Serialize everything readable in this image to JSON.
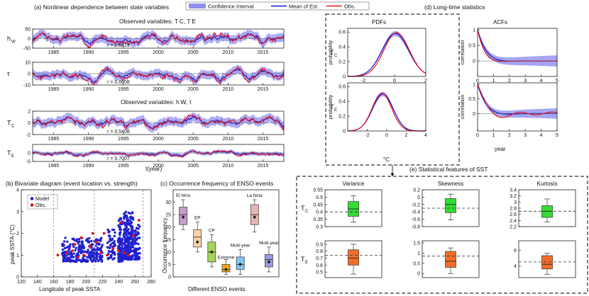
{
  "chart_data": {
    "type": "composite",
    "legend": {
      "items": [
        "Confidence Interval",
        "Mean of Est.",
        "Obs."
      ],
      "colors": {
        "ci": "#8f8ff0",
        "mean": "#1515c8",
        "obs": "#e8141e"
      }
    },
    "panel_a": {
      "title": "(a) Nonlinear dependence between state variables",
      "subtitle1": "Observed variables: T C, T E",
      "subtitle2": "Observed variables: h W, τ",
      "xlabel": "t(year)",
      "xticks": [
        "1985",
        "1990",
        "1995",
        "2000",
        "2005",
        "2010",
        "2015"
      ],
      "xlim": [
        1982,
        2018
      ],
      "rows": [
        {
          "label": "h",
          "sub": "W",
          "ylim": [
            -50,
            50
          ],
          "yticks": [
            "50",
            "0",
            "-50"
          ],
          "amp": 30,
          "seed": 3,
          "r": "r = 0.6819"
        },
        {
          "label": "τ",
          "sub": "",
          "ylim": [
            -10,
            10
          ],
          "yticks": [
            "10",
            "0",
            "-10"
          ],
          "amp": 5,
          "seed": 7,
          "r": "r = 0.6608"
        },
        {
          "label": "T",
          "sub": "C",
          "ylim": [
            -2,
            2
          ],
          "yticks": [
            "2",
            "0",
            "-2"
          ],
          "amp": 1,
          "seed": 11,
          "r": "r = 0.5408"
        },
        {
          "label": "T",
          "sub": "E",
          "ylim": [
            -5,
            5
          ],
          "yticks": [
            "0",
            "-5"
          ],
          "amp": 1.5,
          "seed": 17,
          "r": "r = 0.7007"
        }
      ]
    },
    "panel_b": {
      "title": "(b) Bivariate diagram (event location vs. strength)",
      "xlabel": "Longitude of peak SSTA",
      "ylabel": "peak SSTA (°C)",
      "xlim": [
        120,
        280
      ],
      "ylim": [
        0,
        4
      ],
      "xticks": [
        120,
        140,
        160,
        180,
        200,
        220,
        240,
        260,
        280
      ],
      "yticks": [
        0,
        1,
        2,
        3,
        4
      ],
      "vlines": [
        160,
        210,
        270
      ],
      "legend": [
        "Model",
        "Obs."
      ],
      "model_color": "#2020d0",
      "obs_color": "#e01010",
      "obs_points": [
        [
          165,
          1.0
        ],
        [
          176,
          1.1
        ],
        [
          183,
          1.2
        ],
        [
          190,
          0.9
        ],
        [
          197,
          1.0
        ],
        [
          205,
          1.4
        ],
        [
          212,
          1.6
        ],
        [
          222,
          2.0
        ],
        [
          233,
          1.3
        ],
        [
          240,
          1.2
        ],
        [
          243,
          2.5
        ],
        [
          247,
          1.1
        ],
        [
          258,
          1.9
        ],
        [
          265,
          2.6
        ],
        [
          252,
          1.0
        ],
        [
          218,
          1.1
        ],
        [
          186,
          1.5
        ],
        [
          194,
          1.8
        ],
        [
          208,
          2.0
        ],
        [
          226,
          1.0
        ]
      ]
    },
    "panel_c": {
      "title": "(c) Occurrence frequency of ENSO events",
      "xlabel": "Different ENSO events",
      "ylabel": "Occurrence frequency",
      "ylim": [
        0,
        35
      ],
      "yticks": [
        0,
        5,
        10,
        15,
        20,
        25,
        30
      ],
      "boxes": [
        {
          "name": "El Nino",
          "q1": 21,
          "q3": 28,
          "med": 25,
          "lo": 19,
          "hi": 31,
          "mean": 24,
          "color": "#c89bcd"
        },
        {
          "name": "EP",
          "q1": 12,
          "q3": 19,
          "med": 16,
          "lo": 10,
          "hi": 22,
          "mean": 14,
          "color": "#f6d3a8"
        },
        {
          "name": "CP",
          "q1": 6,
          "q3": 14,
          "med": 10,
          "lo": 4,
          "hi": 17,
          "mean": 10,
          "color": "#a7d25a"
        },
        {
          "name": "Extreme",
          "q1": 2,
          "q3": 5,
          "med": 3,
          "lo": 1,
          "hi": 7,
          "mean": 3,
          "color": "#f2a421"
        },
        {
          "name": "Multi-year",
          "q1": 3,
          "q3": 8,
          "med": 5,
          "lo": 1,
          "hi": 11,
          "mean": 5,
          "color": "#7cc8f0"
        },
        {
          "name": "La Nina",
          "q1": 21,
          "q3": 29,
          "med": 25,
          "lo": 18,
          "hi": 31,
          "mean": 24,
          "color": "#eab5b5"
        },
        {
          "name": "Multi-year",
          "q1": 4,
          "q3": 9,
          "med": 7,
          "lo": 2,
          "hi": 12,
          "mean": 6,
          "color": "#9b9bea"
        }
      ]
    },
    "panel_d": {
      "title": "(d) Long-time statistics",
      "pdf_title": "PDFs",
      "acf_title": "ACFs",
      "pdf_ylabel": "probability",
      "acf_ylabel": "correlation",
      "pdf_xlabel": "°C",
      "acf_xlabel": "year",
      "rows": [
        "C",
        "E"
      ],
      "pdf_xticks": [
        "-2",
        "0",
        "2"
      ],
      "pdf_xticks2": [
        "-2",
        "0",
        "2",
        "4"
      ],
      "pdf_yticks": [
        "0",
        "0.2",
        "0.4",
        "0.6"
      ],
      "acf_xticks": [
        "0",
        "1",
        "2",
        "3",
        "4",
        "5"
      ],
      "acf_yticks": [
        "0",
        "0.5",
        "1"
      ]
    },
    "panel_e": {
      "title": "(e) Statistical features of SST",
      "columns": [
        "Variance",
        "Skewness",
        "Kurtosis"
      ],
      "rows": [
        "C",
        "E"
      ],
      "boxes": [
        {
          "row": 0,
          "col": 0,
          "ylim": [
            0.3,
            0.55
          ],
          "yticks": [
            "0.55",
            "0.5",
            "0.45",
            "0.4",
            "0.35",
            "0.3"
          ],
          "q1": 0.37,
          "q3": 0.47,
          "med": 0.42,
          "lo": 0.33,
          "hi": 0.51,
          "obs": 0.4,
          "color": "#33dd33"
        },
        {
          "row": 0,
          "col": 1,
          "ylim": [
            -0.8,
            0.2
          ],
          "yticks": [
            "0.2",
            "0",
            "-0.2",
            "-0.4",
            "-0.6",
            "-0.8"
          ],
          "q1": -0.42,
          "q3": -0.04,
          "med": -0.2,
          "lo": -0.62,
          "hi": 0.08,
          "obs": -0.3,
          "color": "#33dd33"
        },
        {
          "row": 0,
          "col": 2,
          "ylim": [
            2.2,
            3.4
          ],
          "yticks": [
            "3.4",
            "3.2",
            "3",
            "2.8",
            "2.6",
            "2.4",
            "2.2"
          ],
          "q1": 2.5,
          "q3": 2.88,
          "med": 2.7,
          "lo": 2.35,
          "hi": 3.1,
          "obs": 2.7,
          "color": "#33dd33"
        },
        {
          "row": 1,
          "col": 0,
          "ylim": [
            0.42,
            0.95
          ],
          "yticks": [
            "0.9",
            "0.8",
            "0.7",
            "0.6",
            "0.5"
          ],
          "q1": 0.6,
          "q3": 0.82,
          "med": 0.7,
          "lo": 0.47,
          "hi": 0.9,
          "obs": 0.74,
          "color": "#f36d2a"
        },
        {
          "row": 1,
          "col": 1,
          "ylim": [
            -0.2,
            1.6
          ],
          "yticks": [
            "1.5",
            "1",
            "0.5",
            "0"
          ],
          "q1": 0.3,
          "q3": 1.08,
          "med": 0.6,
          "lo": 0.0,
          "hi": 1.25,
          "obs": 0.85,
          "color": "#f36d2a"
        },
        {
          "row": 1,
          "col": 2,
          "ylim": [
            2.5,
            7.2
          ],
          "yticks": [
            "6",
            "4"
          ],
          "q1": 3.6,
          "q3": 5.3,
          "med": 4.2,
          "lo": 2.9,
          "hi": 5.6,
          "obs": 4.5,
          "color": "#f36d2a"
        }
      ]
    }
  }
}
